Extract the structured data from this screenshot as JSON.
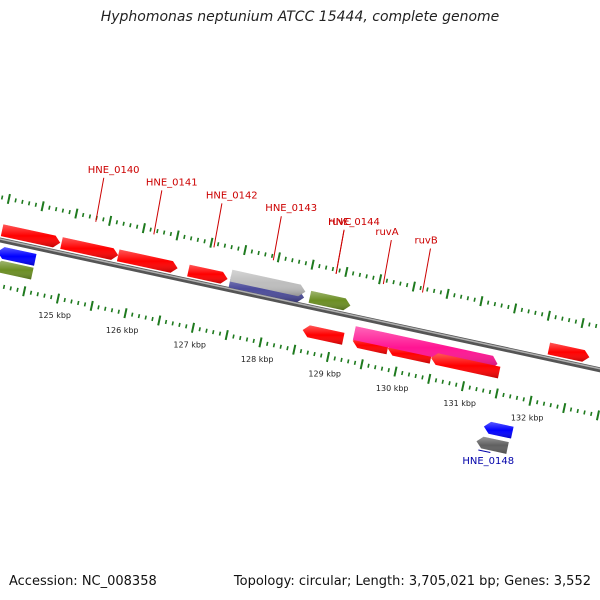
{
  "header": {
    "title": "Hyphomonas neptunium ATCC 15444, complete genome"
  },
  "footer": {
    "accession": "Accession: NC_008358",
    "summary": "Topology: circular; Length: 3,705,021 bp; Genes: 3,552"
  },
  "colors": {
    "backbone": "#7a7a7a",
    "tick": "#1e7a1e",
    "gene_red": "#ff0000",
    "gene_pink": "#ff1493",
    "gene_olive": "#6b8e23",
    "gene_blue": "#0000ff",
    "gene_gray": "#606060",
    "label_red": "#cc0000",
    "label_blue": "#0000aa"
  },
  "scale": {
    "unit": "kbp",
    "ticks": [
      125,
      126,
      127,
      128,
      129,
      130,
      131,
      132
    ]
  },
  "genes": [
    {
      "label": "HNE_0140",
      "strand": "+",
      "start": 124.88,
      "end": 125.72,
      "color": "red"
    },
    {
      "label": "HNE_0141",
      "strand": "+",
      "start": 125.72,
      "end": 126.6,
      "color": "red"
    },
    {
      "label": "HNE_0142",
      "strand": "+",
      "start": 126.76,
      "end": 127.34,
      "color": "red"
    },
    {
      "label": "HNE_0143",
      "strand": "+",
      "start": 127.38,
      "end": 128.48,
      "color": "slate"
    },
    {
      "label": "",
      "strand": "+",
      "start": 127.38,
      "end": 128.48,
      "color": "silver"
    },
    {
      "label": "HNE_0144",
      "strand": "+",
      "start": 128.56,
      "end": 129.16,
      "color": "olive"
    },
    {
      "label": "ruvC",
      "strand": "-",
      "start": 128.56,
      "end": 129.16,
      "color": "red"
    },
    {
      "label": "ruvA",
      "strand": "-",
      "start": 129.3,
      "end": 129.82,
      "color": "red"
    },
    {
      "label": "ruvB",
      "strand": "-",
      "start": 129.82,
      "end": 130.46,
      "color": "red"
    },
    {
      "label": "",
      "strand": "+",
      "start": 129.3,
      "end": 131.42,
      "color": "pink"
    },
    {
      "label": "",
      "strand": "-",
      "start": 130.46,
      "end": 131.47,
      "color": "red"
    },
    {
      "label": "",
      "strand": "+",
      "start": 132.1,
      "end": 132.7,
      "color": "red"
    },
    {
      "label": "",
      "strand": "+",
      "start": 124.0,
      "end": 124.86,
      "color": "red"
    },
    {
      "label": "",
      "strand": "-",
      "start": 124.0,
      "end": 124.56,
      "color": "blue"
    },
    {
      "label": "",
      "strand": "-",
      "start": 124.0,
      "end": 124.56,
      "color": "olive"
    },
    {
      "label": "",
      "strand": "-",
      "start": 131.42,
      "end": 131.84,
      "color": "blue"
    },
    {
      "label": "HNE_0148",
      "strand": "-",
      "start": 131.36,
      "end": 131.82,
      "color": "gray"
    }
  ]
}
